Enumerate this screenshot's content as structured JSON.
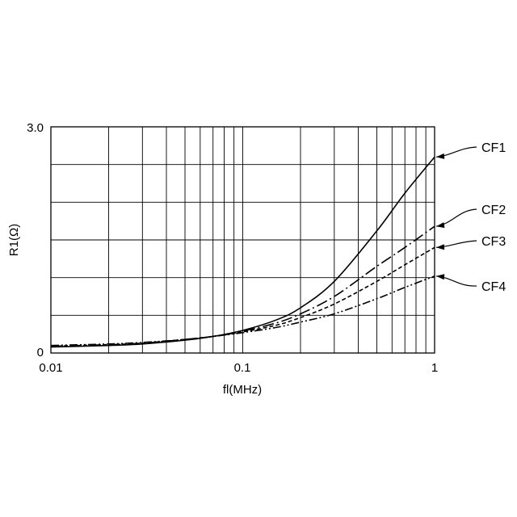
{
  "chart_data": {
    "type": "line",
    "xscale": "log",
    "xlim": [
      0.01,
      1
    ],
    "ylim": [
      0,
      3.0
    ],
    "xlabel": "fl(MHz)",
    "ylabel": "R1(Ω)",
    "x_tick_labels": [
      {
        "value": 0.01,
        "label": "0.01"
      },
      {
        "value": 0.1,
        "label": "0.1"
      },
      {
        "value": 1,
        "label": "1"
      }
    ],
    "y_tick_labels": [
      {
        "value": 0,
        "label": "0"
      },
      {
        "value": 3.0,
        "label": "3.0"
      }
    ],
    "y_gridlines": [
      0,
      0.5,
      1.0,
      1.5,
      2.0,
      2.5,
      3.0
    ],
    "grid": true,
    "series": [
      {
        "name": "CF1",
        "dash": "solid",
        "x": [
          0.01,
          0.02,
          0.03,
          0.05,
          0.07,
          0.1,
          0.15,
          0.2,
          0.3,
          0.5,
          0.7,
          1.0
        ],
        "y": [
          0.08,
          0.1,
          0.12,
          0.17,
          0.22,
          0.3,
          0.44,
          0.6,
          0.95,
          1.62,
          2.12,
          2.6
        ]
      },
      {
        "name": "CF2",
        "dash": "dash-dot",
        "x": [
          0.01,
          0.02,
          0.03,
          0.05,
          0.07,
          0.1,
          0.15,
          0.2,
          0.3,
          0.5,
          0.7,
          1.0
        ],
        "y": [
          0.09,
          0.11,
          0.13,
          0.18,
          0.22,
          0.29,
          0.4,
          0.52,
          0.75,
          1.15,
          1.4,
          1.68
        ]
      },
      {
        "name": "CF3",
        "dash": "dashed",
        "x": [
          0.01,
          0.02,
          0.03,
          0.05,
          0.07,
          0.1,
          0.15,
          0.2,
          0.3,
          0.5,
          0.7,
          1.0
        ],
        "y": [
          0.09,
          0.11,
          0.13,
          0.18,
          0.22,
          0.28,
          0.37,
          0.47,
          0.65,
          0.95,
          1.17,
          1.4
        ]
      },
      {
        "name": "CF4",
        "dash": "dash-dot-dot",
        "x": [
          0.01,
          0.02,
          0.03,
          0.05,
          0.07,
          0.1,
          0.15,
          0.2,
          0.3,
          0.5,
          0.7,
          1.0
        ],
        "y": [
          0.1,
          0.12,
          0.14,
          0.18,
          0.22,
          0.27,
          0.34,
          0.41,
          0.52,
          0.72,
          0.87,
          1.02
        ]
      }
    ]
  }
}
